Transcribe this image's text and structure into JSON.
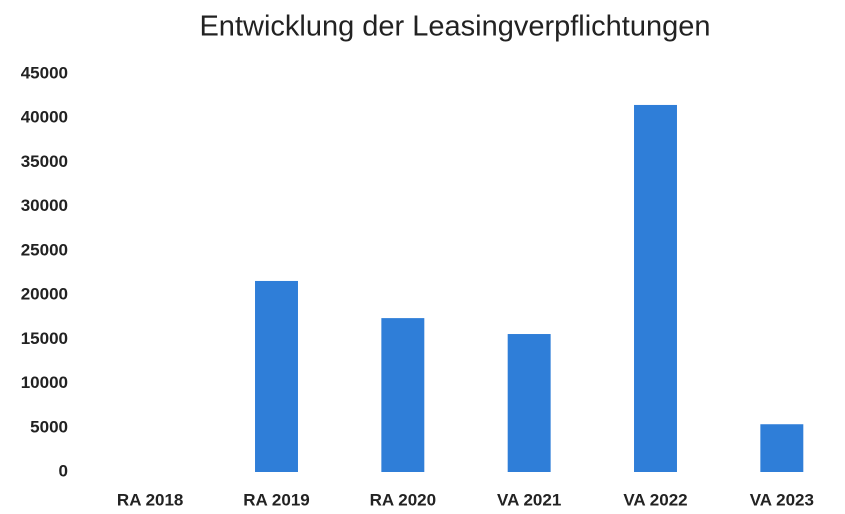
{
  "chart_data": {
    "type": "bar",
    "title": "Entwicklung der Leasingverpflichtungen",
    "categories": [
      "RA 2018",
      "RA 2019",
      "RA 2020",
      "VA 2021",
      "VA 2022",
      "VA 2023"
    ],
    "values": [
      0,
      21600,
      17400,
      15600,
      41500,
      5400
    ],
    "color": "#2f7ed8",
    "ylim": [
      0,
      45000
    ],
    "yticks": [
      0,
      5000,
      10000,
      15000,
      20000,
      25000,
      30000,
      35000,
      40000,
      45000
    ],
    "grid": false
  }
}
